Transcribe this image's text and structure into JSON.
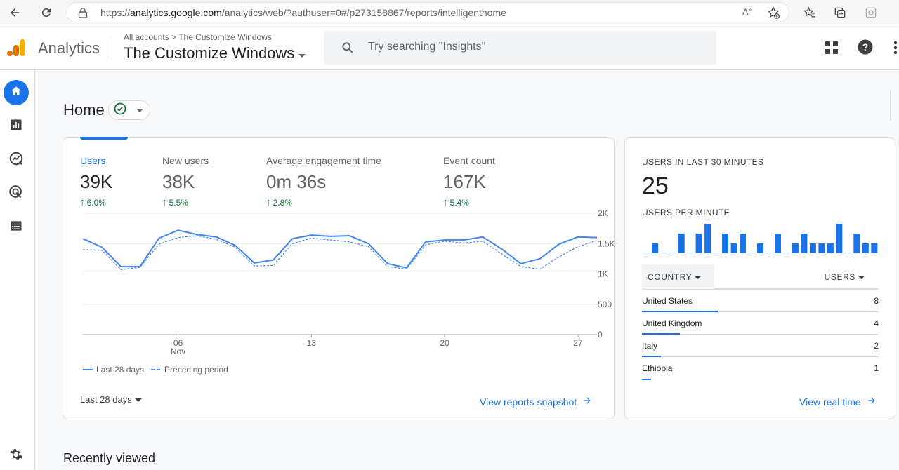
{
  "browser": {
    "url_prefix": "https://",
    "url_host": "analytics.google.com",
    "url_path": "/analytics/web/?authuser=0#/p273158867/reports/intelligenthome"
  },
  "header": {
    "app_name": "Analytics",
    "breadcrumb": "All accounts  >  The Customize Windows",
    "account_title": "The Customize Windows",
    "search_placeholder": "Try searching \"Insights\""
  },
  "page": {
    "title": "Home",
    "section_recent": "Recently viewed"
  },
  "metrics": [
    {
      "label": "Users",
      "value": "39K",
      "delta": "6.0%"
    },
    {
      "label": "New users",
      "value": "38K",
      "delta": "5.5%"
    },
    {
      "label": "Average engagement time",
      "value": "0m 36s",
      "delta": "2.8%"
    },
    {
      "label": "Event count",
      "value": "167K",
      "delta": "5.4%"
    }
  ],
  "chart_data": {
    "type": "line",
    "x": [
      1,
      2,
      3,
      4,
      5,
      6,
      7,
      8,
      9,
      10,
      11,
      12,
      13,
      14,
      15,
      16,
      17,
      18,
      19,
      20,
      21,
      22,
      23,
      24,
      25,
      26,
      27,
      28
    ],
    "x_tick_labels": [
      {
        "day": 6,
        "line1": "06",
        "line2": "Nov"
      },
      {
        "day": 13,
        "line1": "13",
        "line2": ""
      },
      {
        "day": 20,
        "line1": "20",
        "line2": ""
      },
      {
        "day": 27,
        "line1": "27",
        "line2": ""
      }
    ],
    "y_ticks": [
      {
        "value": 0,
        "label": "0"
      },
      {
        "value": 500,
        "label": "500"
      },
      {
        "value": 1000,
        "label": "1K"
      },
      {
        "value": 1500,
        "label": "1.5K"
      },
      {
        "value": 2000,
        "label": "2K"
      }
    ],
    "ylim": [
      0,
      2000
    ],
    "series": [
      {
        "name": "Last 28 days",
        "style": "solid",
        "color": "#4285f4",
        "values": [
          1580,
          1440,
          1120,
          1120,
          1590,
          1720,
          1650,
          1610,
          1470,
          1180,
          1230,
          1580,
          1640,
          1620,
          1630,
          1500,
          1170,
          1100,
          1530,
          1560,
          1560,
          1610,
          1410,
          1170,
          1250,
          1490,
          1610,
          1600
        ]
      },
      {
        "name": "Preceding period",
        "style": "dashed",
        "color": "#4285f4",
        "values": [
          1400,
          1390,
          1070,
          1110,
          1490,
          1600,
          1630,
          1570,
          1440,
          1130,
          1140,
          1500,
          1590,
          1560,
          1530,
          1450,
          1120,
          1080,
          1480,
          1540,
          1510,
          1540,
          1330,
          1120,
          1080,
          1280,
          1450,
          1550
        ]
      }
    ],
    "legend_position": "bottom-left",
    "grid": true
  },
  "chart_controls": {
    "range_label": "Last 28 days",
    "snapshot_link": "View reports snapshot"
  },
  "realtime": {
    "title": "USERS IN LAST 30 MINUTES",
    "value": "25",
    "subtitle": "USERS PER MINUTE",
    "per_minute": [
      0,
      1,
      0,
      0,
      2,
      0,
      2,
      3,
      0,
      2,
      1,
      2,
      0,
      1,
      0,
      2,
      0,
      1,
      2,
      1,
      1,
      1,
      3,
      0,
      2,
      1,
      1
    ],
    "col_country": "COUNTRY",
    "col_users": "USERS",
    "rows": [
      {
        "country": "United States",
        "users": "8",
        "share": 0.32
      },
      {
        "country": "United Kingdom",
        "users": "4",
        "share": 0.16
      },
      {
        "country": "Italy",
        "users": "2",
        "share": 0.08
      },
      {
        "country": "Ethiopia",
        "users": "1",
        "share": 0.04
      }
    ],
    "link": "View real time"
  },
  "colors": {
    "accent": "#1a73e8",
    "positive": "#137333",
    "line": "#4285f4"
  },
  "icons": [
    "back-icon",
    "reload-icon",
    "lock-icon",
    "read-aloud-icon",
    "favorite-add-icon",
    "favorites-icon",
    "collections-icon",
    "extension-icon",
    "search-icon",
    "apps-grid-icon",
    "help-icon",
    "more-vert-icon",
    "home-icon",
    "reports-icon",
    "explore-icon",
    "advertising-icon",
    "configure-icon",
    "settings-icon",
    "check-circle-icon",
    "arrow-up-icon",
    "arrow-right-icon",
    "dropdown-arrow-icon"
  ]
}
